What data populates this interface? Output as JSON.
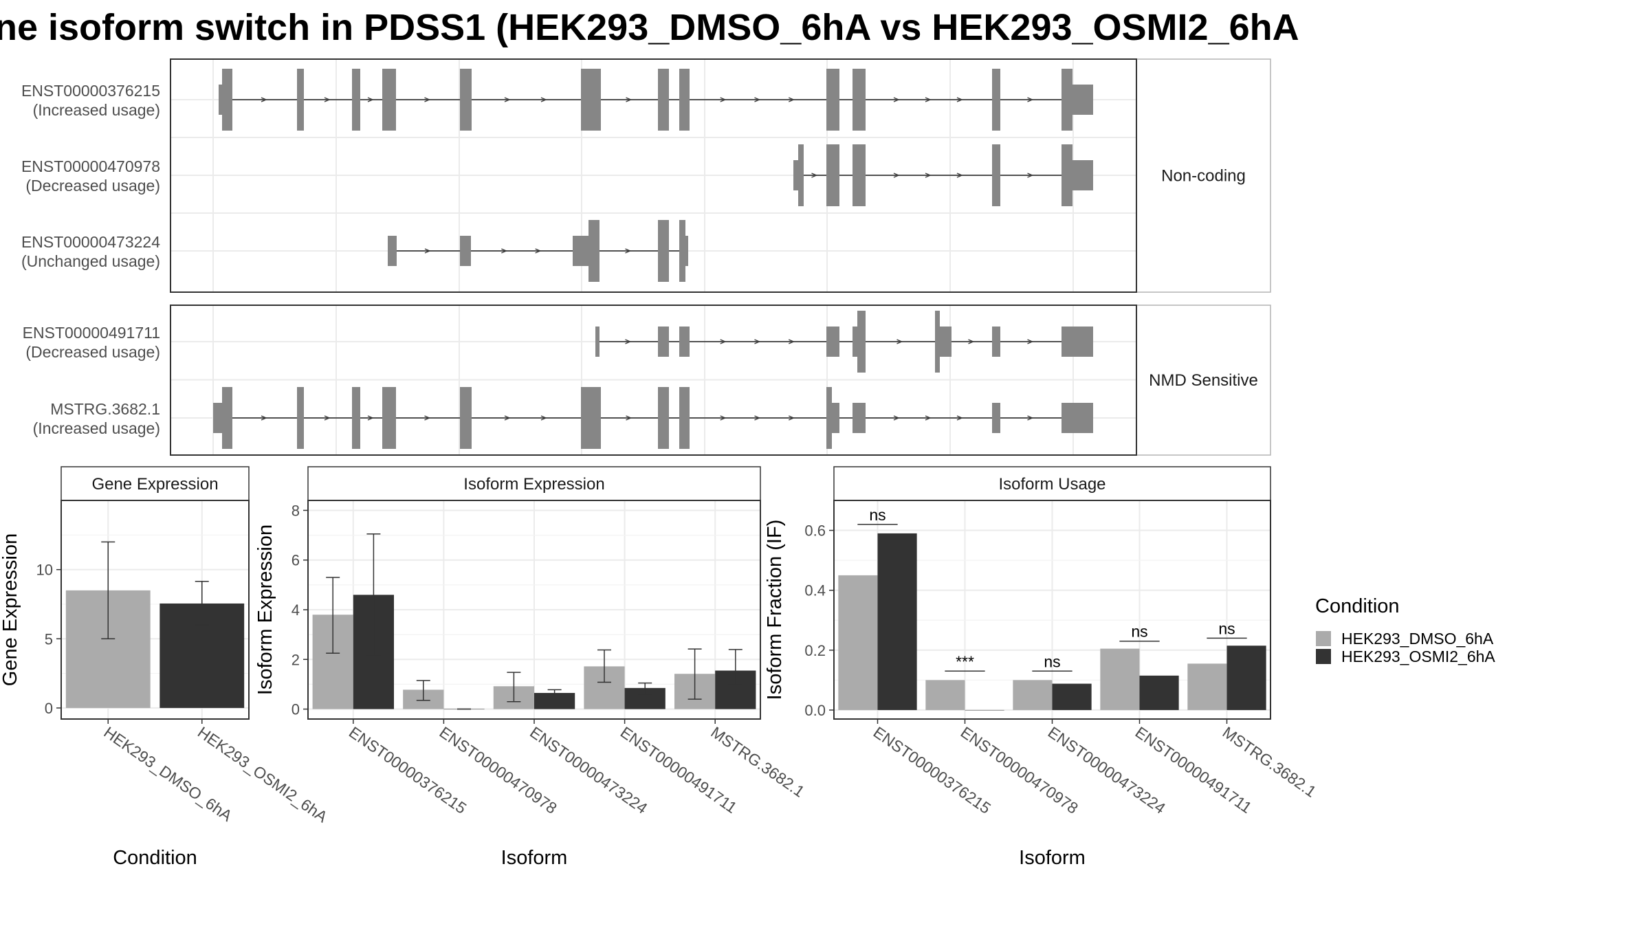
{
  "title": "ne isoform switch in PDSS1 (HEK293_DMSO_6hA vs HEK293_OSMI2_6hA",
  "colors": {
    "exon": "#868686",
    "condition_a": "#ababab",
    "condition_b": "#333333",
    "grid": "#ebebeb",
    "strip_text": "#1a1a1a",
    "axis_text": "#4d4d4d"
  },
  "chart_data": [
    {
      "type": "gene-structure",
      "groups": [
        {
          "label": "Non-coding",
          "transcripts": [
            {
              "id": "ENST00000376215",
              "usage": "(Increased usage)"
            },
            {
              "id": "ENST00000470978",
              "usage": "(Decreased usage)"
            },
            {
              "id": "ENST00000473224",
              "usage": "(Unchanged usage)"
            }
          ]
        },
        {
          "label": "NMD Sensitive",
          "transcripts": [
            {
              "id": "ENST00000491711",
              "usage": "(Decreased usage)"
            },
            {
              "id": "MSTRG.3682.1",
              "usage": "(Increased usage)"
            }
          ]
        }
      ]
    },
    {
      "type": "bar",
      "title": "Gene Expression",
      "xlabel": "Condition",
      "ylabel": "Gene Expression",
      "ylim": [
        -0.8,
        15
      ],
      "yticks": [
        0,
        5,
        10
      ],
      "categories": [
        "HEK293_DMSO_6hA",
        "HEK293_OSMI2_6hA"
      ],
      "values": [
        8.5,
        7.55
      ],
      "error": [
        [
          5.0,
          12.0
        ],
        [
          6.0,
          9.15
        ]
      ]
    },
    {
      "type": "bar",
      "title": "Isoform Expression",
      "xlabel": "Isoform",
      "ylabel": "Isoform Expression",
      "ylim": [
        -0.4,
        8.4
      ],
      "yticks": [
        0,
        2,
        4,
        6,
        8
      ],
      "categories": [
        "ENST00000376215",
        "ENST00000470978",
        "ENST00000473224",
        "ENST00000491711",
        "MSTRG.3682.1"
      ],
      "series": [
        {
          "name": "HEK293_DMSO_6hA",
          "values": [
            3.8,
            0.78,
            0.92,
            1.72,
            1.42
          ],
          "error": [
            [
              2.25,
              5.3
            ],
            [
              0.35,
              1.15
            ],
            [
              0.3,
              1.48
            ],
            [
              1.08,
              2.38
            ],
            [
              0.4,
              2.42
            ]
          ]
        },
        {
          "name": "HEK293_OSMI2_6hA",
          "values": [
            4.6,
            0.01,
            0.65,
            0.85,
            1.55
          ],
          "error": [
            [
              2.15,
              7.05
            ],
            [
              0.0,
              0.0
            ],
            [
              0.55,
              0.78
            ],
            [
              0.6,
              1.05
            ],
            [
              0.98,
              2.4
            ]
          ]
        }
      ]
    },
    {
      "type": "bar",
      "title": "Isoform Usage",
      "xlabel": "Isoform",
      "ylabel": "Isoform Fraction (IF)",
      "ylim": [
        -0.03,
        0.7
      ],
      "yticks": [
        0.0,
        0.2,
        0.4,
        0.6
      ],
      "ytick_labels": [
        "0.0",
        "0.2",
        "0.4",
        "0.6"
      ],
      "categories": [
        "ENST00000376215",
        "ENST00000470978",
        "ENST00000473224",
        "ENST00000491711",
        "MSTRG.3682.1"
      ],
      "series": [
        {
          "name": "HEK293_DMSO_6hA",
          "values": [
            0.45,
            0.1,
            0.1,
            0.205,
            0.155
          ]
        },
        {
          "name": "HEK293_OSMI2_6hA",
          "values": [
            0.59,
            0.0,
            0.088,
            0.115,
            0.215
          ]
        }
      ],
      "significance": [
        "ns",
        "***",
        "ns",
        "ns",
        "ns"
      ],
      "significance_y": [
        0.62,
        0.13,
        0.13,
        0.23,
        0.24
      ]
    }
  ],
  "legend": {
    "title": "Condition",
    "items": [
      "HEK293_DMSO_6hA",
      "HEK293_OSMI2_6hA"
    ]
  }
}
